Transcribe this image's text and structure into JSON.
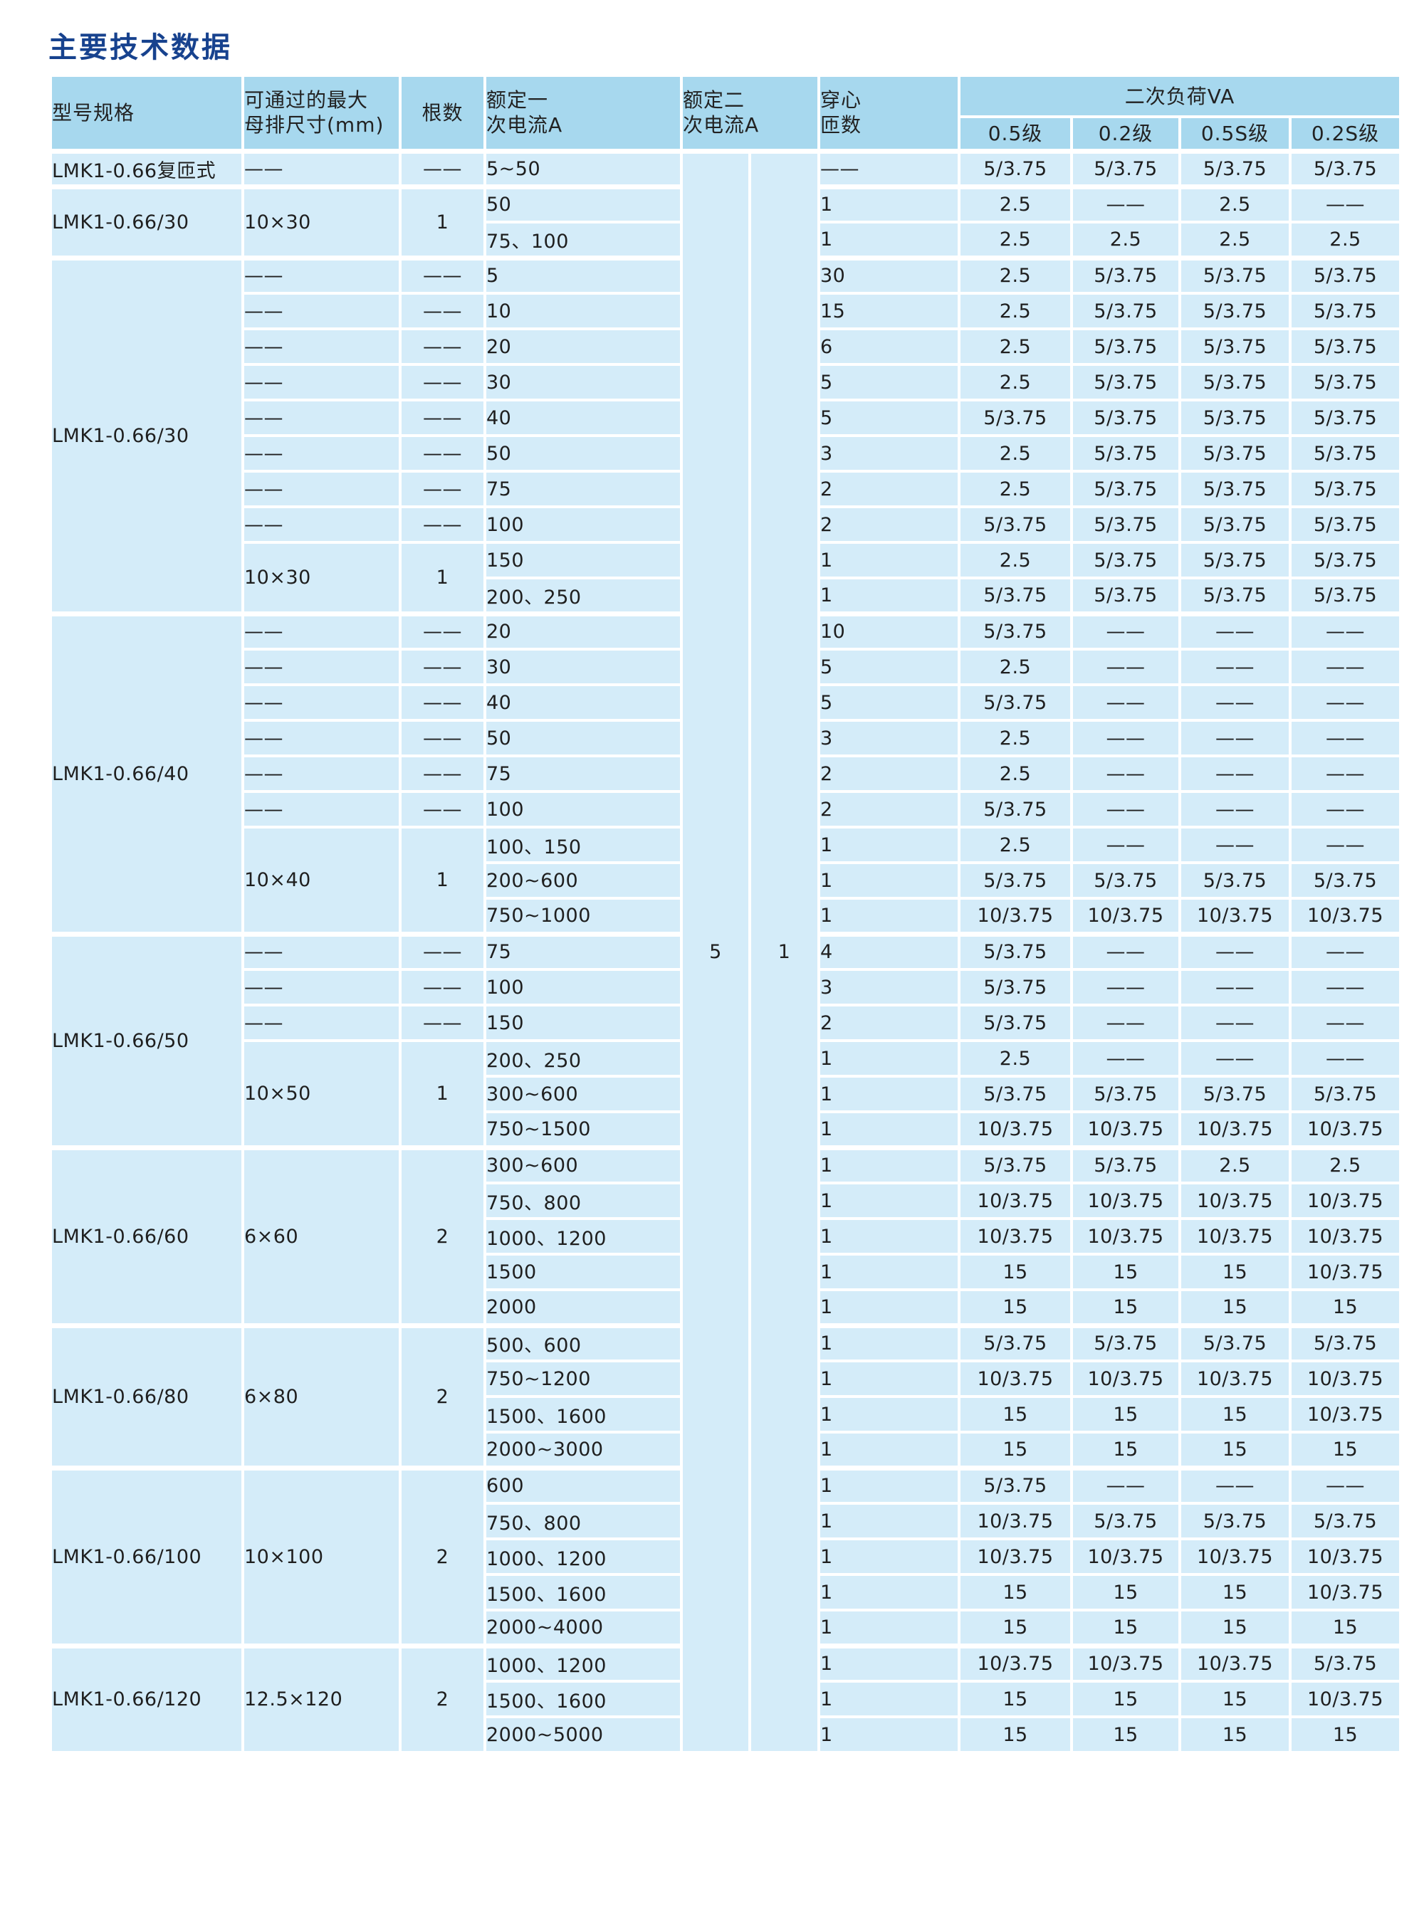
{
  "title": "主要技术数据",
  "colors": {
    "title_text": "#17428e",
    "header_bg": "#a7d8ee",
    "cell_bg": "#d4ecf9",
    "grid": "#ffffff",
    "body_text": "#1f1f1f"
  },
  "table": {
    "headers": {
      "model": "型号规格",
      "busbar": "可通过的最大\n母排尺寸(mm)",
      "count": "根数",
      "primary": "额定一\n次电流A",
      "secondary": "额定二\n次电流A",
      "turns": "穿心\n匝数",
      "burden_group": "二次负荷VA",
      "burden_classes": [
        "0.5级",
        "0.2级",
        "0.5S级",
        "0.2S级"
      ]
    },
    "secondary_values": {
      "left": "5",
      "right": "1"
    },
    "rows": [
      {
        "g": 1,
        "model": {
          "t": "LMK1-0.66复匝式"
        },
        "busbar": {
          "t": "——"
        },
        "count": {
          "t": "——"
        },
        "primary": "5~50",
        "turns": "——",
        "b": [
          "5/3.75",
          "5/3.75",
          "5/3.75",
          "5/3.75"
        ]
      },
      {
        "g": 1,
        "model": {
          "t": "LMK1-0.66/30",
          "rs": 2
        },
        "busbar": {
          "t": "10×30",
          "rs": 2
        },
        "count": {
          "t": "1",
          "rs": 2
        },
        "primary": "50",
        "turns": "1",
        "b": [
          "2.5",
          "——",
          "2.5",
          "——"
        ]
      },
      {
        "primary": "75、100",
        "turns": "1",
        "b": [
          "2.5",
          "2.5",
          "2.5",
          "2.5"
        ]
      },
      {
        "g": 1,
        "model": {
          "t": "LMK1-0.66/30",
          "rs": 10
        },
        "busbar": {
          "t": "——"
        },
        "count": {
          "t": "——"
        },
        "primary": "5",
        "turns": "30",
        "b": [
          "2.5",
          "5/3.75",
          "5/3.75",
          "5/3.75"
        ]
      },
      {
        "busbar": {
          "t": "——"
        },
        "count": {
          "t": "——"
        },
        "primary": "10",
        "turns": "15",
        "b": [
          "2.5",
          "5/3.75",
          "5/3.75",
          "5/3.75"
        ]
      },
      {
        "busbar": {
          "t": "——"
        },
        "count": {
          "t": "——"
        },
        "primary": "20",
        "turns": "6",
        "b": [
          "2.5",
          "5/3.75",
          "5/3.75",
          "5/3.75"
        ]
      },
      {
        "busbar": {
          "t": "——"
        },
        "count": {
          "t": "——"
        },
        "primary": "30",
        "turns": "5",
        "b": [
          "2.5",
          "5/3.75",
          "5/3.75",
          "5/3.75"
        ]
      },
      {
        "busbar": {
          "t": "——"
        },
        "count": {
          "t": "——"
        },
        "primary": "40",
        "turns": "5",
        "b": [
          "5/3.75",
          "5/3.75",
          "5/3.75",
          "5/3.75"
        ]
      },
      {
        "busbar": {
          "t": "——"
        },
        "count": {
          "t": "——"
        },
        "primary": "50",
        "turns": "3",
        "b": [
          "2.5",
          "5/3.75",
          "5/3.75",
          "5/3.75"
        ]
      },
      {
        "busbar": {
          "t": "——"
        },
        "count": {
          "t": "——"
        },
        "primary": "75",
        "turns": "2",
        "b": [
          "2.5",
          "5/3.75",
          "5/3.75",
          "5/3.75"
        ]
      },
      {
        "busbar": {
          "t": "——"
        },
        "count": {
          "t": "——"
        },
        "primary": "100",
        "turns": "2",
        "b": [
          "5/3.75",
          "5/3.75",
          "5/3.75",
          "5/3.75"
        ]
      },
      {
        "busbar": {
          "t": "10×30",
          "rs": 2
        },
        "count": {
          "t": "1",
          "rs": 2
        },
        "primary": "150",
        "turns": "1",
        "b": [
          "2.5",
          "5/3.75",
          "5/3.75",
          "5/3.75"
        ]
      },
      {
        "primary": "200、250",
        "turns": "1",
        "b": [
          "5/3.75",
          "5/3.75",
          "5/3.75",
          "5/3.75"
        ]
      },
      {
        "g": 1,
        "model": {
          "t": "LMK1-0.66/40",
          "rs": 9
        },
        "busbar": {
          "t": "——"
        },
        "count": {
          "t": "——"
        },
        "primary": "20",
        "turns": "10",
        "b": [
          "5/3.75",
          "——",
          "——",
          "——"
        ]
      },
      {
        "busbar": {
          "t": "——"
        },
        "count": {
          "t": "——"
        },
        "primary": "30",
        "turns": "5",
        "b": [
          "2.5",
          "——",
          "——",
          "——"
        ]
      },
      {
        "busbar": {
          "t": "——"
        },
        "count": {
          "t": "——"
        },
        "primary": "40",
        "turns": "5",
        "b": [
          "5/3.75",
          "——",
          "——",
          "——"
        ]
      },
      {
        "busbar": {
          "t": "——"
        },
        "count": {
          "t": "——"
        },
        "primary": "50",
        "turns": "3",
        "b": [
          "2.5",
          "——",
          "——",
          "——"
        ]
      },
      {
        "busbar": {
          "t": "——"
        },
        "count": {
          "t": "——"
        },
        "primary": "75",
        "turns": "2",
        "b": [
          "2.5",
          "——",
          "——",
          "——"
        ]
      },
      {
        "busbar": {
          "t": "——"
        },
        "count": {
          "t": "——"
        },
        "primary": "100",
        "turns": "2",
        "b": [
          "5/3.75",
          "——",
          "——",
          "——"
        ]
      },
      {
        "busbar": {
          "t": "10×40",
          "rs": 3
        },
        "count": {
          "t": "1",
          "rs": 3
        },
        "primary": "100、150",
        "turns": "1",
        "b": [
          "2.5",
          "——",
          "——",
          "——"
        ]
      },
      {
        "primary": "200~600",
        "turns": "1",
        "b": [
          "5/3.75",
          "5/3.75",
          "5/3.75",
          "5/3.75"
        ]
      },
      {
        "primary": "750~1000",
        "turns": "1",
        "b": [
          "10/3.75",
          "10/3.75",
          "10/3.75",
          "10/3.75"
        ]
      },
      {
        "g": 1,
        "model": {
          "t": "LMK1-0.66/50",
          "rs": 6
        },
        "busbar": {
          "t": "——"
        },
        "count": {
          "t": "——"
        },
        "primary": "75",
        "turns": "4",
        "b": [
          "5/3.75",
          "——",
          "——",
          "——"
        ]
      },
      {
        "busbar": {
          "t": "——"
        },
        "count": {
          "t": "——"
        },
        "primary": "100",
        "turns": "3",
        "b": [
          "5/3.75",
          "——",
          "——",
          "——"
        ]
      },
      {
        "busbar": {
          "t": "——"
        },
        "count": {
          "t": "——"
        },
        "primary": "150",
        "turns": "2",
        "b": [
          "5/3.75",
          "——",
          "——",
          "——"
        ]
      },
      {
        "busbar": {
          "t": "10×50",
          "rs": 3
        },
        "count": {
          "t": "1",
          "rs": 3
        },
        "primary": "200、250",
        "turns": "1",
        "b": [
          "2.5",
          "——",
          "——",
          "——"
        ]
      },
      {
        "primary": "300~600",
        "turns": "1",
        "b": [
          "5/3.75",
          "5/3.75",
          "5/3.75",
          "5/3.75"
        ]
      },
      {
        "primary": "750~1500",
        "turns": "1",
        "b": [
          "10/3.75",
          "10/3.75",
          "10/3.75",
          "10/3.75"
        ]
      },
      {
        "g": 1,
        "model": {
          "t": "LMK1-0.66/60",
          "rs": 5
        },
        "busbar": {
          "t": "6×60",
          "rs": 5
        },
        "count": {
          "t": "2",
          "rs": 5
        },
        "primary": "300~600",
        "turns": "1",
        "b": [
          "5/3.75",
          "5/3.75",
          "2.5",
          "2.5"
        ]
      },
      {
        "primary": "750、800",
        "turns": "1",
        "b": [
          "10/3.75",
          "10/3.75",
          "10/3.75",
          "10/3.75"
        ]
      },
      {
        "primary": "1000、1200",
        "turns": "1",
        "b": [
          "10/3.75",
          "10/3.75",
          "10/3.75",
          "10/3.75"
        ]
      },
      {
        "primary": "1500",
        "turns": "1",
        "b": [
          "15",
          "15",
          "15",
          "10/3.75"
        ]
      },
      {
        "primary": "2000",
        "turns": "1",
        "b": [
          "15",
          "15",
          "15",
          "15"
        ]
      },
      {
        "g": 1,
        "model": {
          "t": "LMK1-0.66/80",
          "rs": 4
        },
        "busbar": {
          "t": "6×80",
          "rs": 4
        },
        "count": {
          "t": "2",
          "rs": 4
        },
        "primary": "500、600",
        "turns": "1",
        "b": [
          "5/3.75",
          "5/3.75",
          "5/3.75",
          "5/3.75"
        ]
      },
      {
        "primary": "750~1200",
        "turns": "1",
        "b": [
          "10/3.75",
          "10/3.75",
          "10/3.75",
          "10/3.75"
        ]
      },
      {
        "primary": "1500、1600",
        "turns": "1",
        "b": [
          "15",
          "15",
          "15",
          "10/3.75"
        ]
      },
      {
        "primary": "2000~3000",
        "turns": "1",
        "b": [
          "15",
          "15",
          "15",
          "15"
        ]
      },
      {
        "g": 1,
        "model": {
          "t": "LMK1-0.66/100",
          "rs": 5
        },
        "busbar": {
          "t": "10×100",
          "rs": 5
        },
        "count": {
          "t": "2",
          "rs": 5
        },
        "primary": "600",
        "turns": "1",
        "b": [
          "5/3.75",
          "——",
          "——",
          "——"
        ]
      },
      {
        "primary": "750、800",
        "turns": "1",
        "b": [
          "10/3.75",
          "5/3.75",
          "5/3.75",
          "5/3.75"
        ]
      },
      {
        "primary": "1000、1200",
        "turns": "1",
        "b": [
          "10/3.75",
          "10/3.75",
          "10/3.75",
          "10/3.75"
        ]
      },
      {
        "primary": "1500、1600",
        "turns": "1",
        "b": [
          "15",
          "15",
          "15",
          "10/3.75"
        ]
      },
      {
        "primary": "2000~4000",
        "turns": "1",
        "b": [
          "15",
          "15",
          "15",
          "15"
        ]
      },
      {
        "g": 1,
        "model": {
          "t": "LMK1-0.66/120",
          "rs": 3
        },
        "busbar": {
          "t": "12.5×120",
          "rs": 3
        },
        "count": {
          "t": "2",
          "rs": 3
        },
        "primary": "1000、1200",
        "turns": "1",
        "b": [
          "10/3.75",
          "10/3.75",
          "10/3.75",
          "5/3.75"
        ]
      },
      {
        "primary": "1500、1600",
        "turns": "1",
        "b": [
          "15",
          "15",
          "15",
          "10/3.75"
        ]
      },
      {
        "primary": "2000~5000",
        "turns": "1",
        "b": [
          "15",
          "15",
          "15",
          "15"
        ]
      }
    ]
  }
}
